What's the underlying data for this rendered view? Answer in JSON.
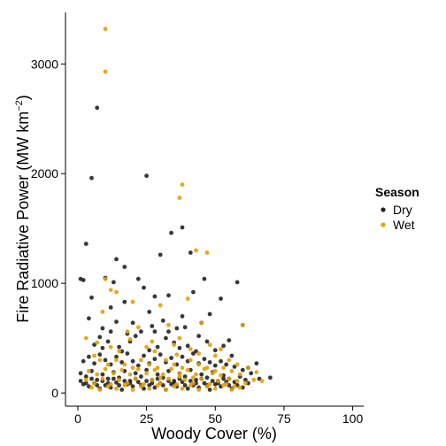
{
  "chart_data": {
    "type": "scatter",
    "title": "",
    "xlabel": "Woody Cover (%)",
    "ylabel_main": "Fire Radiative Power (MW km",
    "ylabel_sup": "−2",
    "ylabel_close": ")",
    "xlim": [
      -4.5,
      104
    ],
    "ylim": [
      -120,
      3470
    ],
    "xticks": [
      0,
      25,
      50,
      75,
      100
    ],
    "xtick_labels": [
      "0",
      "25",
      "50",
      "75",
      "100"
    ],
    "yticks": [
      0,
      1000,
      2000,
      3000
    ],
    "ytick_labels": [
      "0",
      "1000",
      "2000",
      "3000"
    ],
    "grid": false,
    "legend": {
      "title": "Season",
      "position": "right",
      "entries": [
        {
          "label": "Dry",
          "color": "#222222"
        },
        {
          "label": "Wet",
          "color": "#E69F00"
        }
      ]
    },
    "series": [
      {
        "name": "Dry",
        "color": "#222222",
        "points": [
          [
            7,
            2600
          ],
          [
            5,
            1960
          ],
          [
            25,
            1980
          ],
          [
            3,
            1360
          ],
          [
            34,
            1460
          ],
          [
            38,
            1510
          ],
          [
            30,
            1260
          ],
          [
            14,
            1220
          ],
          [
            17,
            1150
          ],
          [
            41,
            1280
          ],
          [
            1,
            1040
          ],
          [
            2,
            1030
          ],
          [
            58,
            1010
          ],
          [
            13,
            1010
          ],
          [
            22,
            1040
          ],
          [
            10,
            1050
          ],
          [
            46,
            1040
          ],
          [
            5,
            870
          ],
          [
            33,
            890
          ],
          [
            28,
            880
          ],
          [
            12,
            780
          ],
          [
            17,
            830
          ],
          [
            24,
            960
          ],
          [
            42,
            920
          ],
          [
            52,
            860
          ],
          [
            60,
            620
          ],
          [
            4,
            680
          ],
          [
            9,
            590
          ],
          [
            14,
            650
          ],
          [
            20,
            640
          ],
          [
            23,
            560
          ],
          [
            27,
            610
          ],
          [
            31,
            660
          ],
          [
            36,
            590
          ],
          [
            38,
            700
          ],
          [
            45,
            640
          ],
          [
            48,
            720
          ],
          [
            55,
            480
          ],
          [
            6,
            440
          ],
          [
            8,
            510
          ],
          [
            11,
            470
          ],
          [
            15,
            420
          ],
          [
            19,
            470
          ],
          [
            21,
            520
          ],
          [
            26,
            390
          ],
          [
            29,
            420
          ],
          [
            32,
            500
          ],
          [
            35,
            460
          ],
          [
            40,
            430
          ],
          [
            44,
            520
          ],
          [
            47,
            470
          ],
          [
            50,
            390
          ],
          [
            53,
            430
          ],
          [
            56,
            340
          ],
          [
            2,
            290
          ],
          [
            4,
            330
          ],
          [
            6,
            270
          ],
          [
            8,
            350
          ],
          [
            10,
            300
          ],
          [
            12,
            260
          ],
          [
            14,
            330
          ],
          [
            16,
            280
          ],
          [
            18,
            360
          ],
          [
            20,
            290
          ],
          [
            22,
            250
          ],
          [
            24,
            340
          ],
          [
            26,
            270
          ],
          [
            28,
            310
          ],
          [
            30,
            350
          ],
          [
            32,
            280
          ],
          [
            34,
            320
          ],
          [
            36,
            260
          ],
          [
            38,
            330
          ],
          [
            40,
            290
          ],
          [
            42,
            360
          ],
          [
            44,
            270
          ],
          [
            46,
            310
          ],
          [
            48,
            280
          ],
          [
            50,
            250
          ],
          [
            52,
            290
          ],
          [
            54,
            260
          ],
          [
            57,
            240
          ],
          [
            60,
            210
          ],
          [
            63,
            180
          ],
          [
            66,
            130
          ],
          [
            70,
            140
          ],
          [
            65,
            270
          ],
          [
            62,
            230
          ],
          [
            1,
            180
          ],
          [
            3,
            150
          ],
          [
            5,
            200
          ],
          [
            7,
            120
          ],
          [
            9,
            170
          ],
          [
            11,
            130
          ],
          [
            13,
            190
          ],
          [
            15,
            140
          ],
          [
            17,
            200
          ],
          [
            19,
            110
          ],
          [
            21,
            180
          ],
          [
            23,
            150
          ],
          [
            25,
            210
          ],
          [
            27,
            120
          ],
          [
            29,
            170
          ],
          [
            31,
            140
          ],
          [
            33,
            200
          ],
          [
            35,
            110
          ],
          [
            37,
            180
          ],
          [
            39,
            150
          ],
          [
            41,
            210
          ],
          [
            43,
            120
          ],
          [
            45,
            170
          ],
          [
            47,
            140
          ],
          [
            49,
            190
          ],
          [
            51,
            110
          ],
          [
            53,
            160
          ],
          [
            55,
            130
          ],
          [
            57,
            100
          ],
          [
            59,
            150
          ],
          [
            61,
            120
          ],
          [
            2,
            80
          ],
          [
            4,
            60
          ],
          [
            6,
            90
          ],
          [
            8,
            40
          ],
          [
            10,
            70
          ],
          [
            12,
            50
          ],
          [
            14,
            95
          ],
          [
            16,
            30
          ],
          [
            18,
            80
          ],
          [
            20,
            60
          ],
          [
            22,
            100
          ],
          [
            24,
            40
          ],
          [
            26,
            70
          ],
          [
            28,
            50
          ],
          [
            30,
            90
          ],
          [
            32,
            30
          ],
          [
            34,
            80
          ],
          [
            36,
            60
          ],
          [
            38,
            100
          ],
          [
            40,
            40
          ],
          [
            42,
            70
          ],
          [
            44,
            50
          ],
          [
            46,
            90
          ],
          [
            48,
            30
          ],
          [
            50,
            80
          ],
          [
            52,
            60
          ],
          [
            54,
            100
          ],
          [
            56,
            40
          ],
          [
            58,
            70
          ],
          [
            60,
            50
          ],
          [
            62,
            90
          ],
          [
            1,
            110
          ],
          [
            3,
            90
          ],
          [
            5,
            130
          ],
          [
            7,
            70
          ],
          [
            9,
            110
          ],
          [
            11,
            90
          ],
          [
            13,
            130
          ],
          [
            15,
            70
          ],
          [
            17,
            110
          ],
          [
            19,
            90
          ],
          [
            21,
            130
          ],
          [
            23,
            70
          ],
          [
            25,
            110
          ],
          [
            27,
            90
          ],
          [
            29,
            130
          ],
          [
            31,
            70
          ],
          [
            33,
            110
          ],
          [
            35,
            90
          ],
          [
            37,
            130
          ],
          [
            39,
            70
          ],
          [
            41,
            110
          ],
          [
            43,
            90
          ],
          [
            45,
            130
          ],
          [
            47,
            70
          ],
          [
            49,
            110
          ],
          [
            51,
            90
          ],
          [
            53,
            130
          ],
          [
            55,
            70
          ],
          [
            16,
            380
          ],
          [
            28,
            560
          ],
          [
            37,
            410
          ],
          [
            43,
            380
          ],
          [
            9,
            410
          ],
          [
            33,
            560
          ],
          [
            39,
            600
          ],
          [
            26,
            740
          ],
          [
            18,
            540
          ],
          [
            12,
            560
          ]
        ]
      },
      {
        "name": "Wet",
        "color": "#E69F00",
        "points": [
          [
            10,
            3320
          ],
          [
            10,
            2930
          ],
          [
            38,
            1900
          ],
          [
            37,
            1780
          ],
          [
            43,
            1300
          ],
          [
            47,
            1280
          ],
          [
            10,
            1040
          ],
          [
            12,
            940
          ],
          [
            14,
            920
          ],
          [
            40,
            860
          ],
          [
            45,
            640
          ],
          [
            9,
            740
          ],
          [
            20,
            830
          ],
          [
            30,
            800
          ],
          [
            18,
            560
          ],
          [
            22,
            600
          ],
          [
            33,
            620
          ],
          [
            37,
            500
          ],
          [
            48,
            440
          ],
          [
            52,
            400
          ],
          [
            60,
            620
          ],
          [
            3,
            500
          ],
          [
            7,
            460
          ],
          [
            12,
            420
          ],
          [
            15,
            380
          ],
          [
            25,
            420
          ],
          [
            28,
            380
          ],
          [
            35,
            440
          ],
          [
            41,
            400
          ],
          [
            44,
            360
          ],
          [
            50,
            340
          ],
          [
            55,
            300
          ],
          [
            58,
            260
          ],
          [
            62,
            230
          ],
          [
            65,
            190
          ],
          [
            6,
            340
          ],
          [
            8,
            300
          ],
          [
            11,
            260
          ],
          [
            14,
            300
          ],
          [
            17,
            260
          ],
          [
            20,
            230
          ],
          [
            23,
            300
          ],
          [
            26,
            260
          ],
          [
            29,
            230
          ],
          [
            32,
            300
          ],
          [
            35,
            260
          ],
          [
            38,
            230
          ],
          [
            41,
            300
          ],
          [
            44,
            260
          ],
          [
            47,
            230
          ],
          [
            50,
            200
          ],
          [
            53,
            230
          ],
          [
            56,
            200
          ],
          [
            59,
            170
          ],
          [
            4,
            200
          ],
          [
            7,
            170
          ],
          [
            10,
            220
          ],
          [
            13,
            180
          ],
          [
            16,
            210
          ],
          [
            19,
            170
          ],
          [
            22,
            220
          ],
          [
            25,
            180
          ],
          [
            28,
            210
          ],
          [
            31,
            170
          ],
          [
            34,
            220
          ],
          [
            37,
            180
          ],
          [
            40,
            210
          ],
          [
            43,
            170
          ],
          [
            46,
            220
          ],
          [
            49,
            180
          ],
          [
            52,
            160
          ],
          [
            55,
            130
          ],
          [
            58,
            110
          ],
          [
            61,
            90
          ],
          [
            64,
            120
          ],
          [
            67,
            110
          ],
          [
            3,
            120
          ],
          [
            6,
            90
          ],
          [
            9,
            130
          ],
          [
            12,
            80
          ],
          [
            15,
            120
          ],
          [
            18,
            90
          ],
          [
            21,
            130
          ],
          [
            24,
            80
          ],
          [
            27,
            120
          ],
          [
            30,
            90
          ],
          [
            33,
            130
          ],
          [
            36,
            80
          ],
          [
            39,
            120
          ],
          [
            42,
            90
          ],
          [
            45,
            130
          ],
          [
            48,
            80
          ],
          [
            51,
            110
          ],
          [
            54,
            80
          ],
          [
            57,
            60
          ],
          [
            5,
            50
          ],
          [
            8,
            30
          ],
          [
            11,
            60
          ],
          [
            14,
            40
          ],
          [
            17,
            70
          ],
          [
            20,
            30
          ],
          [
            23,
            60
          ],
          [
            26,
            40
          ],
          [
            29,
            70
          ],
          [
            32,
            30
          ],
          [
            35,
            60
          ],
          [
            38,
            40
          ],
          [
            41,
            70
          ],
          [
            44,
            30
          ],
          [
            47,
            60
          ],
          [
            50,
            40
          ],
          [
            53,
            70
          ],
          [
            56,
            30
          ],
          [
            59,
            50
          ],
          [
            37,
            150
          ],
          [
            30,
            140
          ],
          [
            42,
            140
          ],
          [
            36,
            350
          ],
          [
            27,
            470
          ],
          [
            19,
            490
          ]
        ]
      }
    ]
  }
}
